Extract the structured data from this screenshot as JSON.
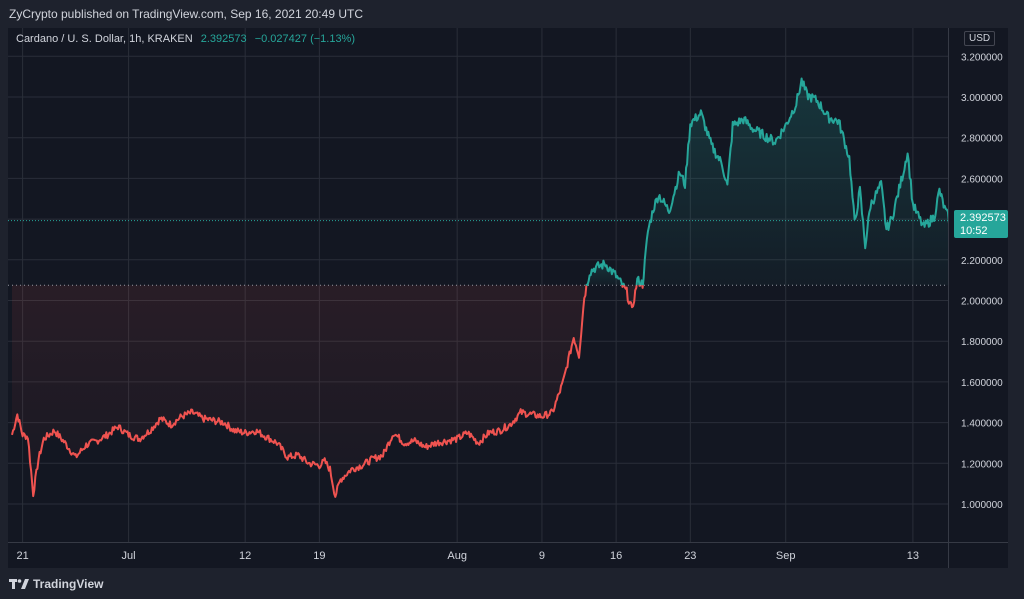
{
  "header": {
    "published_text": "ZyCrypto published on TradingView.com, Sep 16, 2021 20:49 UTC"
  },
  "legend": {
    "symbol": "Cardano / U. S. Dollar, 1h, KRAKEN",
    "last": "2.392573",
    "change": "−0.027427 (−1.13%)"
  },
  "currency": "USD",
  "price_label": {
    "price": "2.392573",
    "countdown": "10:52"
  },
  "footer": {
    "brand": "TradingView"
  },
  "colors": {
    "up": "#26a69a",
    "down": "#ef5350",
    "background": "#131722",
    "grid": "#2a2e39",
    "text": "#d1d4dc"
  },
  "chart_data": {
    "type": "line",
    "title": "Cardano / U. S. Dollar, 1h, KRAKEN",
    "xlabel": "",
    "ylabel": "",
    "x_tick_labels": [
      "21",
      "Jul",
      "12",
      "19",
      "Aug",
      "9",
      "16",
      "23",
      "Sep",
      "13"
    ],
    "x_tick_dates": [
      "2021-06-21",
      "2021-07-01",
      "2021-07-12",
      "2021-07-19",
      "2021-08-01",
      "2021-08-09",
      "2021-08-16",
      "2021-08-23",
      "2021-09-01",
      "2021-09-13"
    ],
    "y_ticks": [
      "1.000000",
      "1.200000",
      "1.400000",
      "1.600000",
      "1.800000",
      "2.000000",
      "2.200000",
      "2.400000",
      "2.600000",
      "2.800000",
      "3.000000",
      "3.200000"
    ],
    "ylim": [
      0.9,
      3.33
    ],
    "baseline": 2.075,
    "last_price": 2.392573,
    "grid": true,
    "series": [
      {
        "points": [
          [
            "2021-06-20",
            1.34
          ],
          [
            "2021-06-20 12:00",
            1.44
          ],
          [
            "2021-06-21",
            1.34
          ],
          [
            "2021-06-21 12:00",
            1.33
          ],
          [
            "2021-06-22",
            1.05
          ],
          [
            "2021-06-22 12:00",
            1.22
          ],
          [
            "2021-06-23",
            1.32
          ],
          [
            "2021-06-24",
            1.36
          ],
          [
            "2021-06-25",
            1.3
          ],
          [
            "2021-06-26",
            1.23
          ],
          [
            "2021-06-27",
            1.29
          ],
          [
            "2021-06-28",
            1.31
          ],
          [
            "2021-06-29",
            1.34
          ],
          [
            "2021-06-30",
            1.38
          ],
          [
            "2021-07-01",
            1.34
          ],
          [
            "2021-07-02",
            1.32
          ],
          [
            "2021-07-03",
            1.36
          ],
          [
            "2021-07-04",
            1.42
          ],
          [
            "2021-07-05",
            1.39
          ],
          [
            "2021-07-06",
            1.43
          ],
          [
            "2021-07-07",
            1.45
          ],
          [
            "2021-07-08",
            1.42
          ],
          [
            "2021-07-09",
            1.41
          ],
          [
            "2021-07-10",
            1.4
          ],
          [
            "2021-07-11",
            1.36
          ],
          [
            "2021-07-12",
            1.35
          ],
          [
            "2021-07-13",
            1.36
          ],
          [
            "2021-07-14",
            1.33
          ],
          [
            "2021-07-15",
            1.3
          ],
          [
            "2021-07-16",
            1.23
          ],
          [
            "2021-07-17",
            1.24
          ],
          [
            "2021-07-18",
            1.2
          ],
          [
            "2021-07-19",
            1.19
          ],
          [
            "2021-07-19 12:00",
            1.21
          ],
          [
            "2021-07-20",
            1.17
          ],
          [
            "2021-07-20 12:00",
            1.04
          ],
          [
            "2021-07-21",
            1.12
          ],
          [
            "2021-07-22",
            1.17
          ],
          [
            "2021-07-23",
            1.19
          ],
          [
            "2021-07-24",
            1.22
          ],
          [
            "2021-07-25",
            1.24
          ],
          [
            "2021-07-26",
            1.35
          ],
          [
            "2021-07-27",
            1.3
          ],
          [
            "2021-07-28",
            1.31
          ],
          [
            "2021-07-29",
            1.28
          ],
          [
            "2021-07-30",
            1.3
          ],
          [
            "2021-07-31",
            1.31
          ],
          [
            "2021-08-01",
            1.32
          ],
          [
            "2021-08-02",
            1.35
          ],
          [
            "2021-08-03",
            1.3
          ],
          [
            "2021-08-04",
            1.35
          ],
          [
            "2021-08-05",
            1.36
          ],
          [
            "2021-08-06",
            1.39
          ],
          [
            "2021-08-07",
            1.45
          ],
          [
            "2021-08-08",
            1.44
          ],
          [
            "2021-08-09",
            1.43
          ],
          [
            "2021-08-10",
            1.45
          ],
          [
            "2021-08-11",
            1.6
          ],
          [
            "2021-08-12",
            1.82
          ],
          [
            "2021-08-12 12:00",
            1.73
          ],
          [
            "2021-08-13",
            2.02
          ],
          [
            "2021-08-13 12:00",
            2.14
          ],
          [
            "2021-08-14",
            2.16
          ],
          [
            "2021-08-15",
            2.18
          ],
          [
            "2021-08-16",
            2.12
          ],
          [
            "2021-08-17",
            2.04
          ],
          [
            "2021-08-17 12:00",
            1.95
          ],
          [
            "2021-08-18",
            2.1
          ],
          [
            "2021-08-18 12:00",
            2.08
          ],
          [
            "2021-08-19",
            2.34
          ],
          [
            "2021-08-19 12:00",
            2.45
          ],
          [
            "2021-08-20",
            2.52
          ],
          [
            "2021-08-21",
            2.44
          ],
          [
            "2021-08-22",
            2.63
          ],
          [
            "2021-08-22 12:00",
            2.57
          ],
          [
            "2021-08-23",
            2.87
          ],
          [
            "2021-08-24",
            2.92
          ],
          [
            "2021-08-25",
            2.76
          ],
          [
            "2021-08-26",
            2.67
          ],
          [
            "2021-08-26 12:00",
            2.56
          ],
          [
            "2021-08-27",
            2.86
          ],
          [
            "2021-08-28",
            2.89
          ],
          [
            "2021-08-29",
            2.84
          ],
          [
            "2021-08-30",
            2.81
          ],
          [
            "2021-08-31",
            2.78
          ],
          [
            "2021-09-01",
            2.86
          ],
          [
            "2021-09-02",
            2.97
          ],
          [
            "2021-09-02 12:00",
            3.08
          ],
          [
            "2021-09-03",
            3.01
          ],
          [
            "2021-09-04",
            2.98
          ],
          [
            "2021-09-05",
            2.9
          ],
          [
            "2021-09-06",
            2.88
          ],
          [
            "2021-09-07",
            2.7
          ],
          [
            "2021-09-07 12:00",
            2.38
          ],
          [
            "2021-09-08",
            2.54
          ],
          [
            "2021-09-08 12:00",
            2.27
          ],
          [
            "2021-09-09",
            2.47
          ],
          [
            "2021-09-10",
            2.57
          ],
          [
            "2021-09-10 12:00",
            2.35
          ],
          [
            "2021-09-11",
            2.4
          ],
          [
            "2021-09-12",
            2.61
          ],
          [
            "2021-09-12 12:00",
            2.73
          ],
          [
            "2021-09-13",
            2.47
          ],
          [
            "2021-09-14",
            2.36
          ],
          [
            "2021-09-15",
            2.41
          ],
          [
            "2021-09-15 12:00",
            2.54
          ],
          [
            "2021-09-16",
            2.45
          ],
          [
            "2021-09-16 12:00",
            2.39
          ]
        ]
      }
    ]
  }
}
